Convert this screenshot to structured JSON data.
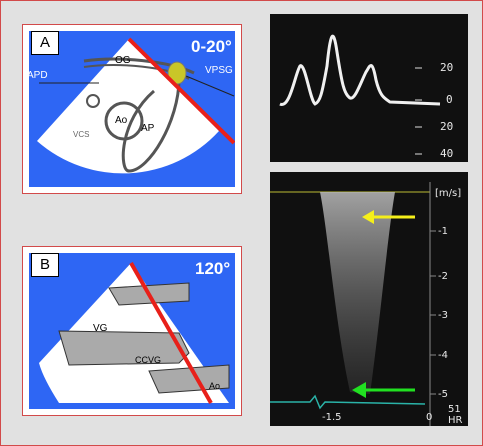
{
  "panel_a": {
    "tag": "A",
    "angle": "0-20°",
    "labels": {
      "og": "OG",
      "apd": "APD",
      "vpsg": "VPSG",
      "ao": "Ao",
      "ap": "AP",
      "vcs": "VCS"
    }
  },
  "panel_b": {
    "tag": "B",
    "angle": "120°",
    "labels": {
      "vg": "VG",
      "ccvg": "CCVG",
      "ao": "Ao"
    }
  },
  "tdi_scale": [
    "20",
    "0",
    "20",
    "40"
  ],
  "cw": {
    "unit": "[m/s]",
    "ticks": [
      "-1",
      "-2",
      "-3",
      "-4",
      "-5"
    ],
    "bottom_left": "-1.5",
    "bottom_mid": "0",
    "hr_value": "51",
    "hr_label": "HR"
  },
  "colors": {
    "frame": "#d24a4a",
    "sector": "#2e66f4",
    "beam": "#e8201a",
    "marker": "#c9c628",
    "arrow_top": "#f5ef1a",
    "arrow_bottom": "#21e021"
  }
}
